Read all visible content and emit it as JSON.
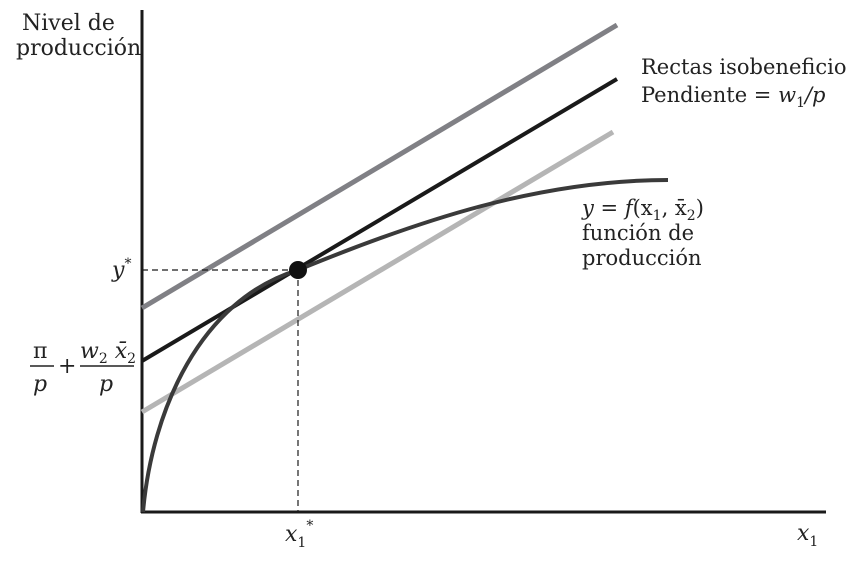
{
  "labels": {
    "y_axis_line1": "Nivel de",
    "y_axis_line2": "producción",
    "x_axis_var": "x",
    "x_axis_sub": "1",
    "y_star_var": "y",
    "y_star_sup": "*",
    "x1_star_var": "x",
    "x1_star_sub": "1",
    "x1_star_sup": "*",
    "isoprofit_title": "Rectas isobeneficio",
    "slope_text": "Pendiente = ",
    "slope_w": "w",
    "slope_sub": "1",
    "slope_rest": "/p",
    "func_y": "y",
    "func_eq": " = ",
    "func_f": "f",
    "func_args_open": "(x",
    "func_args_sub1": "1",
    "func_args_mid": ", x̄",
    "func_args_sub2": "2",
    "func_args_close": ")",
    "func_line2": "función de",
    "func_line3": "producción",
    "intercept_pi": "π",
    "intercept_p1": "p",
    "intercept_plus": "+",
    "intercept_w": "w",
    "intercept_w_sub": "2",
    "intercept_x": " x̄",
    "intercept_x_sub": "2",
    "intercept_p2": "p"
  },
  "colors": {
    "axis": "#1a1a1a",
    "production_curve": "#3a3a3a",
    "isoprofit_high": "#808085",
    "isoprofit_tangent": "#1a1a1a",
    "isoprofit_low": "#b5b5b5",
    "point": "#111111"
  }
}
